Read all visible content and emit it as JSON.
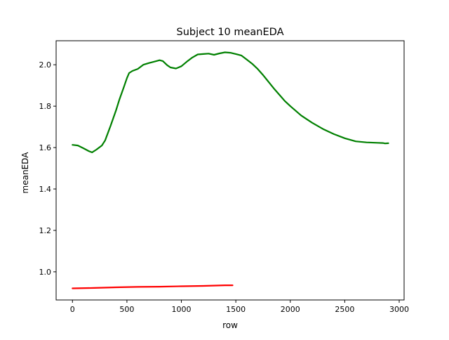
{
  "chart_data": {
    "type": "line",
    "title": "Subject 10 meanEDA",
    "xlabel": "row",
    "ylabel": "meanEDA",
    "xlim": [
      -150,
      3045
    ],
    "ylim": [
      0.864,
      2.116
    ],
    "xticks": [
      0,
      500,
      1000,
      1500,
      2000,
      2500,
      3000
    ],
    "yticks": [
      1.0,
      1.2,
      1.4,
      1.6,
      1.8,
      2.0
    ],
    "xtick_labels": [
      "0",
      "500",
      "1000",
      "1500",
      "2000",
      "2500",
      "3000"
    ],
    "ytick_labels": [
      "1.0",
      "1.2",
      "1.4",
      "1.6",
      "1.8",
      "2.0"
    ],
    "grid": false,
    "series": [
      {
        "color": "#008000",
        "x": [
          0,
          50,
          100,
          150,
          180,
          220,
          270,
          300,
          350,
          400,
          430,
          470,
          500,
          520,
          550,
          600,
          650,
          700,
          750,
          800,
          830,
          870,
          900,
          950,
          1000,
          1050,
          1100,
          1150,
          1200,
          1250,
          1300,
          1350,
          1400,
          1450,
          1500,
          1550,
          1600,
          1650,
          1700,
          1750,
          1800,
          1850,
          1900,
          1950,
          2000,
          2100,
          2200,
          2300,
          2400,
          2500,
          2600,
          2700,
          2800,
          2850,
          2870,
          2900
        ],
        "y": [
          1.613,
          1.61,
          1.597,
          1.583,
          1.577,
          1.59,
          1.61,
          1.635,
          1.705,
          1.78,
          1.83,
          1.89,
          1.935,
          1.96,
          1.97,
          1.98,
          2.0,
          2.008,
          2.015,
          2.022,
          2.018,
          1.998,
          1.987,
          1.982,
          1.993,
          2.015,
          2.035,
          2.05,
          2.052,
          2.054,
          2.048,
          2.055,
          2.06,
          2.058,
          2.052,
          2.045,
          2.025,
          2.005,
          1.98,
          1.95,
          1.918,
          1.885,
          1.855,
          1.825,
          1.8,
          1.755,
          1.72,
          1.69,
          1.665,
          1.645,
          1.63,
          1.625,
          1.623,
          1.622,
          1.62,
          1.621
        ]
      },
      {
        "color": "#ff0000",
        "x": [
          0,
          200,
          400,
          600,
          800,
          1000,
          1200,
          1400,
          1470
        ],
        "y": [
          0.92,
          0.922,
          0.925,
          0.927,
          0.928,
          0.93,
          0.932,
          0.935,
          0.935
        ]
      }
    ]
  }
}
